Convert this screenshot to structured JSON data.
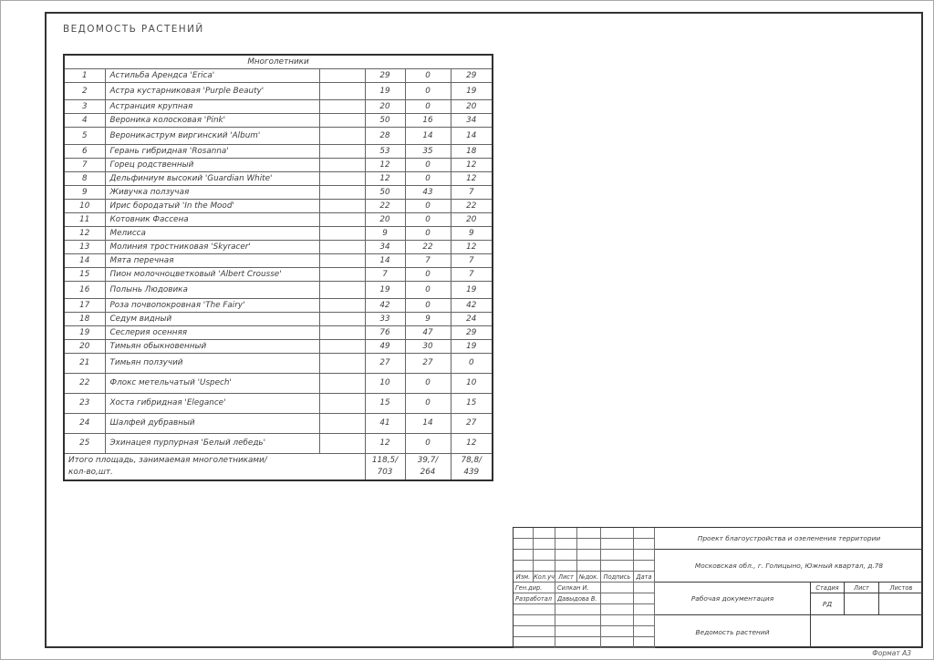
{
  "sheet": {
    "title": "ВЕДОМОСТЬ РАСТЕНИЙ",
    "format_label": "Формат А3"
  },
  "table": {
    "group_header": "Многолетники",
    "rows": [
      {
        "num": "1",
        "name": "Астильба Арендса 'Erica'",
        "v1": "29",
        "v2": "0",
        "v3": "29"
      },
      {
        "num": "2",
        "name": "Астра кустарниковая 'Purple Beauty'",
        "v1": "19",
        "v2": "0",
        "v3": "19"
      },
      {
        "num": "3",
        "name": "Астранция крупная",
        "v1": "20",
        "v2": "0",
        "v3": "20"
      },
      {
        "num": "4",
        "name": "Вероника колосковая 'Pink'",
        "v1": "50",
        "v2": "16",
        "v3": "34"
      },
      {
        "num": "5",
        "name": "Вероникаструм виргинский 'Album'",
        "v1": "28",
        "v2": "14",
        "v3": "14"
      },
      {
        "num": "6",
        "name": "Герань гибридная 'Rosanna'",
        "v1": "53",
        "v2": "35",
        "v3": "18"
      },
      {
        "num": "7",
        "name": "Горец родственный",
        "v1": "12",
        "v2": "0",
        "v3": "12"
      },
      {
        "num": "8",
        "name": "Дельфиниум высокий 'Guardian White'",
        "v1": "12",
        "v2": "0",
        "v3": "12"
      },
      {
        "num": "9",
        "name": "Живучка ползучая",
        "v1": "50",
        "v2": "43",
        "v3": "7"
      },
      {
        "num": "10",
        "name": "Ирис бородатый 'In the Mood'",
        "v1": "22",
        "v2": "0",
        "v3": "22"
      },
      {
        "num": "11",
        "name": "Котовник Фассена",
        "v1": "20",
        "v2": "0",
        "v3": "20"
      },
      {
        "num": "12",
        "name": "Мелисса",
        "v1": "9",
        "v2": "0",
        "v3": "9"
      },
      {
        "num": "13",
        "name": "Молиния тростниковая 'Skyracer'",
        "v1": "34",
        "v2": "22",
        "v3": "12"
      },
      {
        "num": "14",
        "name": "Мята перечная",
        "v1": "14",
        "v2": "7",
        "v3": "7"
      },
      {
        "num": "15",
        "name": "Пион молочноцветковый 'Albert Crousse'",
        "v1": "7",
        "v2": "0",
        "v3": "7"
      },
      {
        "num": "16",
        "name": "Полынь Людовика",
        "v1": "19",
        "v2": "0",
        "v3": "19"
      },
      {
        "num": "17",
        "name": "Роза почвопокровная 'The Fairy'",
        "v1": "42",
        "v2": "0",
        "v3": "42"
      },
      {
        "num": "18",
        "name": "Седум видный",
        "v1": "33",
        "v2": "9",
        "v3": "24"
      },
      {
        "num": "19",
        "name": "Сеслерия осенняя",
        "v1": "76",
        "v2": "47",
        "v3": "29"
      },
      {
        "num": "20",
        "name": "Тимьян обыкновенный",
        "v1": "49",
        "v2": "30",
        "v3": "19"
      },
      {
        "num": "21",
        "name": "Тимьян ползучий",
        "v1": "27",
        "v2": "27",
        "v3": "0"
      },
      {
        "num": "22",
        "name": "Флокс метельчатый 'Uspech'",
        "v1": "10",
        "v2": "0",
        "v3": "10"
      },
      {
        "num": "23",
        "name": "Хоста гибридная 'Elegance'",
        "v1": "15",
        "v2": "0",
        "v3": "15"
      },
      {
        "num": "24",
        "name": "Шалфей дубравный",
        "v1": "41",
        "v2": "14",
        "v3": "27"
      },
      {
        "num": "25",
        "name": "Эхинацея пурпурная 'Белый лебедь'",
        "v1": "12",
        "v2": "0",
        "v3": "12"
      }
    ],
    "totals": {
      "label_line1": "Итого площадь, занимаемая многолетниками/",
      "label_line2": "кол-во,шт.",
      "values": [
        {
          "line1": "118,5/",
          "line2": "703"
        },
        {
          "line1": "39,7/",
          "line2": "264"
        },
        {
          "line1": "78,8/",
          "line2": "439"
        }
      ]
    }
  },
  "titleblock": {
    "change_cols": [
      "Изм.",
      "Кол.уч",
      "Лист",
      "№док.",
      "Подпись",
      "Дата"
    ],
    "signature_rows": [
      {
        "role": "Ген.дир.",
        "name": "Силкан И."
      },
      {
        "role": "Разработал",
        "name": "Давыдова В."
      }
    ],
    "project": "Проект благоустройства и озеленения территории",
    "address": "Московская обл., г. Голицыно, Южный квартал, д.78",
    "doc_type": "Рабочая документация",
    "doc_name": "Ведомость растений",
    "stage_label": "Стадия",
    "sheet_label": "Лист",
    "sheets_label": "Листов",
    "stage_value": "РД"
  }
}
